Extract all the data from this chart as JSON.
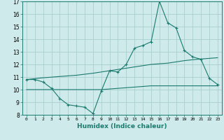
{
  "xlabel": "Humidex (Indice chaleur)",
  "x": [
    0,
    1,
    2,
    3,
    4,
    5,
    6,
    7,
    8,
    9,
    10,
    11,
    12,
    13,
    14,
    15,
    16,
    17,
    18,
    19,
    20,
    21,
    22,
    23
  ],
  "y_main": [
    10.8,
    10.8,
    10.6,
    10.1,
    9.3,
    8.8,
    8.7,
    8.6,
    8.1,
    9.9,
    11.5,
    11.4,
    12.0,
    13.3,
    13.5,
    13.8,
    17.0,
    15.3,
    14.9,
    13.1,
    12.6,
    12.4,
    10.9,
    10.4
  ],
  "y_line1": [
    10.8,
    10.87,
    10.94,
    10.99,
    11.04,
    11.09,
    11.14,
    11.22,
    11.3,
    11.4,
    11.5,
    11.6,
    11.7,
    11.8,
    11.9,
    12.0,
    12.05,
    12.1,
    12.2,
    12.3,
    12.37,
    12.43,
    12.48,
    12.53
  ],
  "y_line2": [
    10.0,
    10.0,
    10.0,
    10.0,
    10.0,
    10.0,
    10.0,
    10.0,
    10.0,
    10.0,
    10.05,
    10.1,
    10.15,
    10.2,
    10.25,
    10.3,
    10.3,
    10.3,
    10.3,
    10.3,
    10.3,
    10.3,
    10.3,
    10.3
  ],
  "line_color": "#1a7a6e",
  "bg_color": "#ceeaea",
  "grid_color": "#aacfcf",
  "ylim": [
    8,
    17
  ],
  "yticks": [
    8,
    9,
    10,
    11,
    12,
    13,
    14,
    15,
    16,
    17
  ],
  "xticks": [
    0,
    1,
    2,
    3,
    4,
    5,
    6,
    7,
    8,
    9,
    10,
    11,
    12,
    13,
    14,
    15,
    16,
    17,
    18,
    19,
    20,
    21,
    22,
    23
  ]
}
